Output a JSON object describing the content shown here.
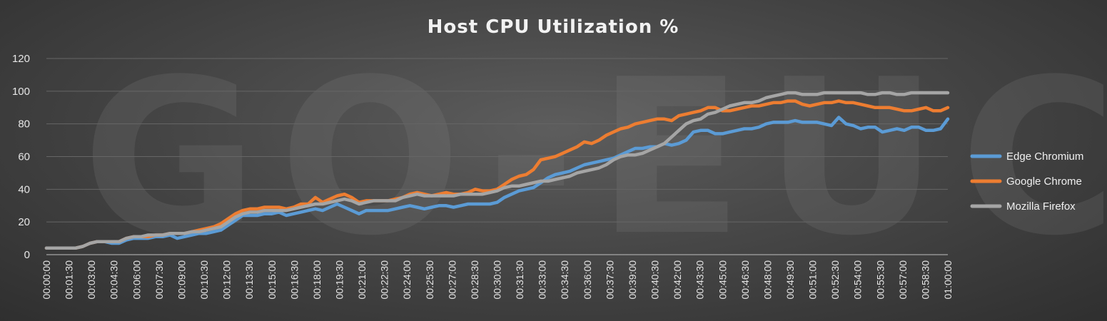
{
  "watermark": "GO-EUC",
  "chart_data": {
    "type": "line",
    "title": "Host CPU Utilization %",
    "xlabel": "",
    "ylabel": "",
    "ylim": [
      0,
      120
    ],
    "yticks": [
      0,
      20,
      40,
      60,
      80,
      100,
      120
    ],
    "grid": true,
    "legend_position": "right",
    "x_labels": [
      "00:00:00",
      "00:01:30",
      "00:03:00",
      "00:04:30",
      "00:06:00",
      "00:07:30",
      "00:09:00",
      "00:10:30",
      "00:12:00",
      "00:13:30",
      "00:15:00",
      "00:16:30",
      "00:18:00",
      "00:19:30",
      "00:21:00",
      "00:22:30",
      "00:24:00",
      "00:25:30",
      "00:27:00",
      "00:28:30",
      "00:30:00",
      "00:31:30",
      "00:33:00",
      "00:34:30",
      "00:36:00",
      "00:37:30",
      "00:39:00",
      "00:40:30",
      "00:42:00",
      "00:43:30",
      "00:45:00",
      "00:46:30",
      "00:48:00",
      "00:49:30",
      "00:51:00",
      "00:52:30",
      "00:54:00",
      "00:55:30",
      "00:57:00",
      "00:58:30",
      "01:00:00"
    ],
    "series": [
      {
        "name": "Edge Chromium",
        "color": "#5b9bd5",
        "values": [
          4,
          4,
          4,
          4,
          4,
          5,
          7,
          8,
          8,
          7,
          7,
          9,
          10,
          10,
          10,
          11,
          11,
          12,
          10,
          11,
          12,
          13,
          13,
          14,
          15,
          18,
          21,
          24,
          24,
          24,
          25,
          25,
          26,
          24,
          25,
          26,
          27,
          28,
          27,
          29,
          31,
          29,
          27,
          25,
          27,
          27,
          27,
          27,
          28,
          29,
          30,
          29,
          28,
          29,
          30,
          30,
          29,
          30,
          31,
          31,
          31,
          31,
          32,
          35,
          37,
          39,
          40,
          41,
          44,
          47,
          49,
          50,
          51,
          53,
          55,
          56,
          57,
          58,
          59,
          61,
          63,
          65,
          65,
          66,
          66,
          68,
          67,
          68,
          70,
          75,
          76,
          76,
          74,
          74,
          75,
          76,
          77,
          77,
          78,
          80,
          81,
          81,
          81,
          82,
          81,
          81,
          81,
          80,
          79,
          84,
          80,
          79,
          77,
          78,
          78,
          75,
          76,
          77,
          76,
          78,
          78,
          76,
          76,
          77,
          83
        ]
      },
      {
        "name": "Google Chrome",
        "color": "#ed7d31",
        "values": [
          4,
          4,
          4,
          4,
          4,
          5,
          7,
          8,
          8,
          8,
          8,
          10,
          11,
          11,
          11,
          12,
          12,
          13,
          13,
          13,
          14,
          15,
          16,
          17,
          19,
          22,
          25,
          27,
          28,
          28,
          29,
          29,
          29,
          28,
          29,
          31,
          31,
          35,
          32,
          34,
          36,
          37,
          35,
          32,
          33,
          33,
          33,
          33,
          34,
          35,
          37,
          38,
          37,
          36,
          37,
          38,
          37,
          37,
          38,
          40,
          39,
          39,
          40,
          43,
          46,
          48,
          49,
          52,
          58,
          59,
          60,
          62,
          64,
          66,
          69,
          68,
          70,
          73,
          75,
          77,
          78,
          80,
          81,
          82,
          83,
          83,
          82,
          85,
          86,
          87,
          88,
          90,
          90,
          88,
          88,
          89,
          90,
          91,
          91,
          92,
          93,
          93,
          94,
          94,
          92,
          91,
          92,
          93,
          93,
          94,
          93,
          93,
          92,
          91,
          90,
          90,
          90,
          89,
          88,
          88,
          89,
          90,
          88,
          88,
          90
        ]
      },
      {
        "name": "Mozilla Firefox",
        "color": "#a5a5a5",
        "values": [
          4,
          4,
          4,
          4,
          4,
          5,
          7,
          8,
          8,
          8,
          8,
          10,
          11,
          11,
          12,
          12,
          12,
          13,
          13,
          13,
          14,
          14,
          15,
          16,
          17,
          20,
          23,
          25,
          26,
          26,
          27,
          27,
          27,
          27,
          28,
          29,
          30,
          31,
          31,
          32,
          33,
          34,
          33,
          31,
          32,
          33,
          33,
          33,
          33,
          35,
          36,
          37,
          36,
          36,
          36,
          36,
          36,
          37,
          37,
          37,
          37,
          38,
          39,
          41,
          42,
          42,
          43,
          44,
          45,
          45,
          46,
          47,
          48,
          50,
          51,
          52,
          53,
          55,
          58,
          60,
          61,
          61,
          62,
          64,
          66,
          68,
          72,
          76,
          80,
          82,
          83,
          86,
          87,
          89,
          91,
          92,
          93,
          93,
          94,
          96,
          97,
          98,
          99,
          99,
          98,
          98,
          98,
          99,
          99,
          99,
          99,
          99,
          99,
          98,
          98,
          99,
          99,
          98,
          98,
          99,
          99,
          99,
          99,
          99,
          99
        ]
      }
    ]
  }
}
